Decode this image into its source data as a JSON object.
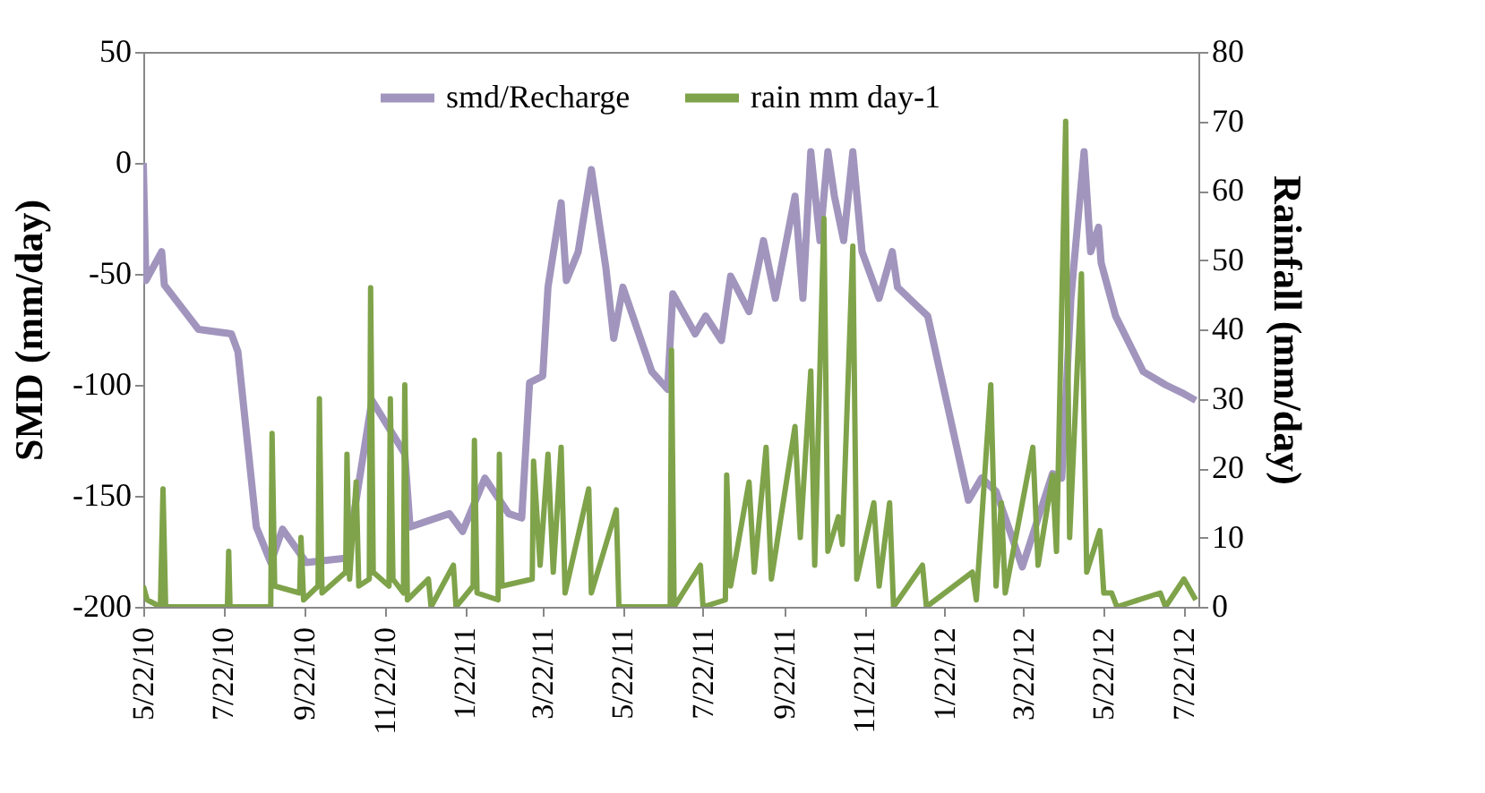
{
  "chart_data": {
    "type": "line",
    "ylabel": "SMD (mm/day)",
    "y2label": "Rainfall (mm/day)",
    "xlim": [
      "2010-05-22",
      "2012-08-02"
    ],
    "xticks": [
      {
        "value": "2010-05-22",
        "label": "5/22/10"
      },
      {
        "value": "2010-07-22",
        "label": "7/22/10"
      },
      {
        "value": "2010-09-22",
        "label": "9/22/10"
      },
      {
        "value": "2010-11-22",
        "label": "11/22/10"
      },
      {
        "value": "2011-01-22",
        "label": "1/22/11"
      },
      {
        "value": "2011-03-22",
        "label": "3/22/11"
      },
      {
        "value": "2011-05-22",
        "label": "5/22/11"
      },
      {
        "value": "2011-07-22",
        "label": "7/22/11"
      },
      {
        "value": "2011-09-22",
        "label": "9/22/11"
      },
      {
        "value": "2011-11-22",
        "label": "11/22/11"
      },
      {
        "value": "2012-01-22",
        "label": "1/22/12"
      },
      {
        "value": "2012-03-22",
        "label": "3/22/12"
      },
      {
        "value": "2012-05-22",
        "label": "5/22/12"
      },
      {
        "value": "2012-07-22",
        "label": "7/22/12"
      }
    ],
    "ylim": [
      -200,
      50
    ],
    "yticks": [
      -200,
      -150,
      -100,
      -50,
      0,
      50
    ],
    "y2lim": [
      0,
      80
    ],
    "y2ticks": [
      0,
      10,
      20,
      30,
      40,
      50,
      60,
      70,
      80
    ],
    "grid": false,
    "legend": "top",
    "line_style": "solid",
    "marker": "none",
    "series": [
      {
        "name": "smd/Recharge",
        "color": "#a195bd",
        "x": [
          "2010-05-22",
          "2010-05-24",
          "2010-06-05",
          "2010-06-07",
          "2010-07-03",
          "2010-07-28",
          "2010-08-02",
          "2010-08-16",
          "2010-08-27",
          "2010-09-05",
          "2010-09-23",
          "2010-10-24",
          "2010-11-12",
          "2010-12-07",
          "2010-12-11",
          "2011-01-10",
          "2011-01-20",
          "2011-02-06",
          "2011-02-24",
          "2011-03-06",
          "2011-03-12",
          "2011-03-22",
          "2011-03-26",
          "2011-04-05",
          "2011-04-09",
          "2011-04-18",
          "2011-04-28",
          "2011-05-09",
          "2011-05-15",
          "2011-05-22",
          "2011-06-13",
          "2011-06-25",
          "2011-06-29",
          "2011-07-16",
          "2011-07-24",
          "2011-08-05",
          "2011-08-12",
          "2011-08-26",
          "2011-09-06",
          "2011-09-15",
          "2011-09-30",
          "2011-10-06",
          "2011-10-12",
          "2011-10-19",
          "2011-10-25",
          "2011-10-30",
          "2011-11-06",
          "2011-11-13",
          "2011-11-20",
          "2011-12-03",
          "2011-12-13",
          "2011-12-17",
          "2012-01-09",
          "2012-02-09",
          "2012-02-19",
          "2012-03-01",
          "2012-03-21",
          "2012-04-13",
          "2012-04-20",
          "2012-04-27",
          "2012-05-07",
          "2012-05-12",
          "2012-05-18",
          "2012-05-20",
          "2012-05-31",
          "2012-06-21",
          "2012-07-08",
          "2012-07-22",
          "2012-07-31"
        ],
        "values": [
          0,
          -53,
          -40,
          -55,
          -75,
          -77,
          -85,
          -164,
          -180,
          -165,
          -180,
          -178,
          -107,
          -131,
          -164,
          -158,
          -166,
          -142,
          -158,
          -160,
          -99,
          -96,
          -56,
          -18,
          -53,
          -40,
          -3,
          -47,
          -79,
          -56,
          -94,
          -102,
          -59,
          -77,
          -69,
          -80,
          -51,
          -67,
          -35,
          -61,
          -15,
          -61,
          5,
          -35,
          5,
          -15,
          -35,
          5,
          -40,
          -61,
          -40,
          -56,
          -69,
          -152,
          -142,
          -148,
          -182,
          -140,
          -142,
          -61,
          5,
          -40,
          -29,
          -45,
          -69,
          -94,
          -100,
          -104,
          -107
        ]
      },
      {
        "name": "rain mm day-1",
        "color": "#7fa34a",
        "axis": "y2",
        "x": [
          "2010-05-22",
          "2010-05-25",
          "2010-06-04",
          "2010-06-06",
          "2010-06-08",
          "2010-07-25",
          "2010-07-26",
          "2010-07-27",
          "2010-08-27",
          "2010-08-28",
          "2010-08-30",
          "2010-09-18",
          "2010-09-19",
          "2010-09-21",
          "2010-10-02",
          "2010-10-03",
          "2010-10-05",
          "2010-10-23",
          "2010-10-24",
          "2010-10-26",
          "2010-10-31",
          "2010-11-02",
          "2010-11-10",
          "2010-11-11",
          "2010-11-13",
          "2010-11-25",
          "2010-11-26",
          "2010-11-28",
          "2010-12-06",
          "2010-12-07",
          "2010-12-09",
          "2010-12-25",
          "2010-12-27",
          "2011-01-13",
          "2011-01-15",
          "2011-01-28",
          "2011-01-29",
          "2011-01-31",
          "2011-02-16",
          "2011-02-17",
          "2011-02-19",
          "2011-03-14",
          "2011-03-15",
          "2011-03-20",
          "2011-03-26",
          "2011-03-30",
          "2011-04-05",
          "2011-04-08",
          "2011-04-26",
          "2011-04-28",
          "2011-05-17",
          "2011-05-19",
          "2011-06-27",
          "2011-06-28",
          "2011-06-30",
          "2011-07-20",
          "2011-07-22",
          "2011-08-08",
          "2011-08-09",
          "2011-08-12",
          "2011-08-26",
          "2011-08-30",
          "2011-09-08",
          "2011-09-12",
          "2011-09-30",
          "2011-10-04",
          "2011-10-12",
          "2011-10-15",
          "2011-10-22",
          "2011-10-25",
          "2011-11-02",
          "2011-11-05",
          "2011-11-13",
          "2011-11-16",
          "2011-11-29",
          "2011-12-03",
          "2011-12-11",
          "2011-12-14",
          "2012-01-05",
          "2012-01-08",
          "2012-02-12",
          "2012-02-15",
          "2012-02-26",
          "2012-03-01",
          "2012-03-05",
          "2012-03-08",
          "2012-03-29",
          "2012-04-02",
          "2012-04-13",
          "2012-04-16",
          "2012-04-23",
          "2012-04-26",
          "2012-05-05",
          "2012-05-09",
          "2012-05-19",
          "2012-05-22",
          "2012-05-28",
          "2012-06-01",
          "2012-07-04",
          "2012-07-08",
          "2012-07-22",
          "2012-07-31"
        ],
        "values": [
          3,
          1,
          0,
          17,
          0,
          0,
          8,
          0,
          0,
          25,
          3,
          2,
          10,
          1,
          3,
          30,
          2,
          5,
          22,
          4,
          18,
          3,
          4,
          46,
          5,
          3,
          30,
          4,
          2,
          32,
          1,
          4,
          0,
          6,
          0,
          3,
          24,
          2,
          1,
          22,
          3,
          4,
          21,
          6,
          22,
          5,
          23,
          2,
          17,
          2,
          14,
          0,
          0,
          37,
          0,
          6,
          0,
          1,
          19,
          3,
          18,
          5,
          23,
          4,
          26,
          10,
          34,
          6,
          56,
          8,
          13,
          9,
          52,
          4,
          15,
          3,
          15,
          0,
          6,
          0,
          5,
          1,
          32,
          3,
          15,
          2,
          23,
          6,
          19,
          8,
          70,
          10,
          48,
          5,
          11,
          2,
          2,
          0,
          2,
          0,
          4,
          1
        ]
      }
    ]
  }
}
